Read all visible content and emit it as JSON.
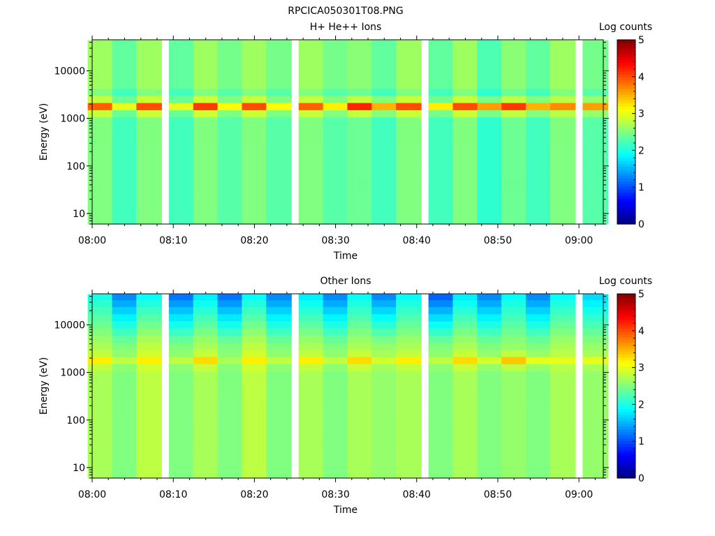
{
  "figure_title": "RPCICA050301T08.PNG",
  "colors": {
    "background": "#ffffff",
    "axis": "#000000",
    "colormap": "jet"
  },
  "chart_data": [
    {
      "type": "heatmap",
      "title": "H+ He++ Ions",
      "xlabel": "Time",
      "ylabel": "Energy (eV)",
      "colorbar_label": "Log counts",
      "colorbar_ticks": [
        "0",
        "1",
        "2",
        "3",
        "4",
        "5"
      ],
      "clim": [
        0,
        5
      ],
      "x_tick_labels": [
        "08:00",
        "08:10",
        "08:20",
        "08:30",
        "08:40",
        "08:50",
        "09:00"
      ],
      "xlim": [
        "08:00",
        "09:03"
      ],
      "y_scale": "log",
      "y_tick_labels": [
        "10",
        "100",
        "1000",
        "10000"
      ],
      "ylim": [
        6,
        45000
      ],
      "time_bins": [
        "08:01",
        "08:04",
        "08:07",
        "08:11",
        "08:14",
        "08:17",
        "08:20",
        "08:23",
        "08:27",
        "08:30",
        "08:33",
        "08:36",
        "08:39",
        "08:43",
        "08:46",
        "08:49",
        "08:52",
        "08:55",
        "08:58",
        "09:02"
      ],
      "energy_bins": [
        7,
        10,
        14,
        20,
        28,
        40,
        57,
        80,
        113,
        160,
        226,
        320,
        450,
        640,
        900,
        1270,
        1800,
        2550,
        3600,
        5100,
        7200,
        10200,
        14400,
        20300,
        28700,
        40000
      ],
      "column_baselines": [
        2.5,
        2.2,
        2.5,
        2.2,
        2.5,
        2.3,
        2.5,
        2.3,
        2.5,
        2.3,
        2.4,
        2.2,
        2.5,
        2.2,
        2.5,
        2.1,
        2.4,
        2.2,
        2.5,
        2.3
      ],
      "peak_energy": 1800,
      "peak_values": [
        3.9,
        3.0,
        4.0,
        3.0,
        4.1,
        3.1,
        4.0,
        3.1,
        3.9,
        3.2,
        4.2,
        3.5,
        4.0,
        3.2,
        4.0,
        3.6,
        4.1,
        3.5,
        3.7,
        3.6
      ]
    },
    {
      "type": "heatmap",
      "title": "Other Ions",
      "xlabel": "Time",
      "ylabel": "Energy (eV)",
      "colorbar_label": "Log counts",
      "colorbar_ticks": [
        "0",
        "1",
        "2",
        "3",
        "4",
        "5"
      ],
      "clim": [
        0,
        5
      ],
      "x_tick_labels": [
        "08:00",
        "08:10",
        "08:20",
        "08:30",
        "08:40",
        "08:50",
        "09:00"
      ],
      "xlim": [
        "08:00",
        "09:03"
      ],
      "y_scale": "log",
      "y_tick_labels": [
        "10",
        "100",
        "1000",
        "10000"
      ],
      "ylim": [
        6,
        45000
      ],
      "time_bins": [
        "08:01",
        "08:04",
        "08:07",
        "08:11",
        "08:14",
        "08:17",
        "08:20",
        "08:23",
        "08:27",
        "08:30",
        "08:33",
        "08:36",
        "08:39",
        "08:43",
        "08:46",
        "08:49",
        "08:52",
        "08:55",
        "08:58",
        "09:02"
      ],
      "energy_bins": [
        7,
        10,
        14,
        20,
        28,
        40,
        57,
        80,
        113,
        160,
        226,
        320,
        450,
        640,
        900,
        1270,
        1800,
        2550,
        3600,
        5100,
        7200,
        10200,
        14400,
        20300,
        28700,
        40000
      ],
      "column_baselines": [
        2.7,
        2.5,
        2.8,
        2.5,
        2.7,
        2.5,
        2.8,
        2.5,
        2.7,
        2.5,
        2.7,
        2.6,
        2.7,
        2.5,
        2.7,
        2.5,
        2.6,
        2.5,
        2.7,
        2.6
      ],
      "top_values": [
        2.0,
        1.3,
        1.9,
        1.2,
        1.8,
        1.2,
        1.9,
        1.3,
        1.8,
        1.3,
        1.9,
        1.3,
        1.9,
        1.1,
        1.8,
        1.3,
        1.9,
        1.3,
        1.9,
        1.7
      ],
      "peak_energy": 1800,
      "peak_values": [
        3.2,
        2.8,
        3.2,
        2.8,
        3.3,
        2.7,
        3.2,
        2.8,
        3.2,
        2.8,
        3.3,
        2.9,
        3.2,
        2.8,
        3.3,
        2.9,
        3.4,
        3.0,
        3.0,
        3.0
      ]
    }
  ]
}
